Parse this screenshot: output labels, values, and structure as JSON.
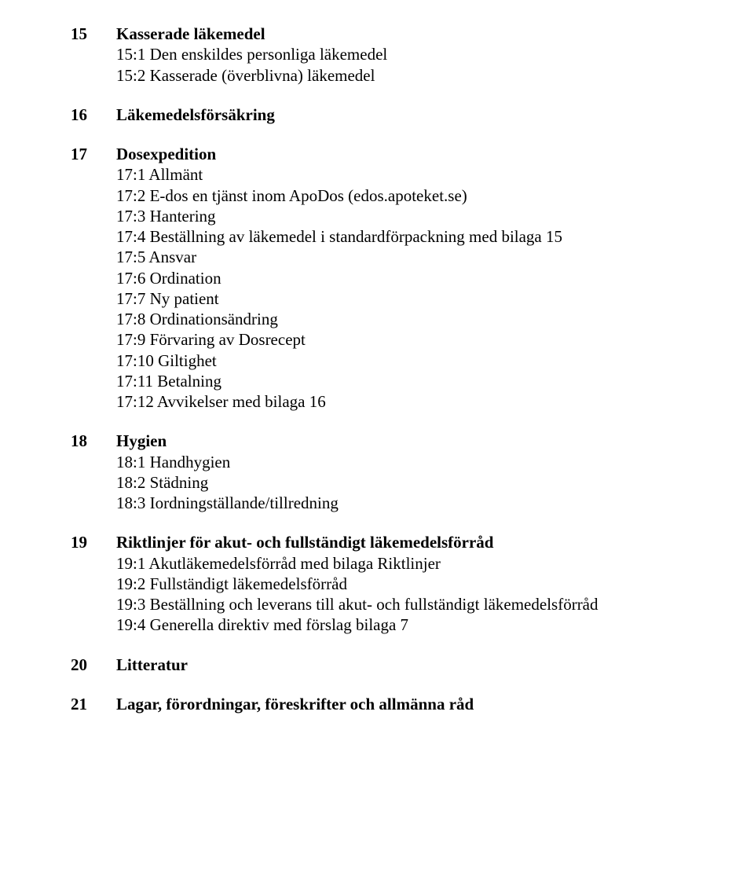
{
  "sections": [
    {
      "num": "15",
      "title": "Kasserade läkemedel",
      "subs": [
        "15:1 Den enskildes personliga läkemedel",
        "15:2 Kasserade (överblivna) läkemedel"
      ]
    },
    {
      "num": "16",
      "title": "Läkemedelsförsäkring",
      "subs": []
    },
    {
      "num": "17",
      "title": "Dosexpedition",
      "subs": [
        "17:1 Allmänt",
        "17:2 E-dos en tjänst inom ApoDos (edos.apoteket.se)",
        "17:3 Hantering",
        "17:4 Beställning av läkemedel i standardförpackning med bilaga 15",
        "17:5 Ansvar",
        "17:6 Ordination",
        "17:7 Ny patient",
        "17:8 Ordinationsändring",
        "17:9 Förvaring av Dosrecept",
        "17:10 Giltighet",
        "17:11 Betalning",
        "17:12 Avvikelser med bilaga 16"
      ]
    },
    {
      "num": "18",
      "title": "Hygien",
      "subs": [
        "18:1 Handhygien",
        "18:2 Städning",
        "18:3 Iordningställande/tillredning"
      ]
    },
    {
      "num": "19",
      "title": "Riktlinjer för akut- och fullständigt läkemedelsförråd",
      "subs": [
        "19:1 Akutläkemedelsförråd med bilaga Riktlinjer",
        "19:2 Fullständigt läkemedelsförråd",
        "19:3 Beställning och leverans till akut- och fullständigt läkemedelsförråd",
        "19:4 Generella direktiv med förslag bilaga 7"
      ]
    },
    {
      "num": "20",
      "title": "Litteratur",
      "subs": []
    },
    {
      "num": "21",
      "title": "Lagar, förordningar, föreskrifter och allmänna råd",
      "subs": []
    }
  ]
}
